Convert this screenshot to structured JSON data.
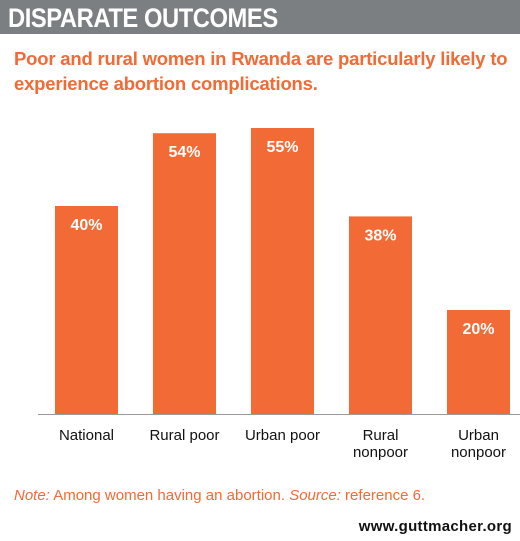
{
  "header": {
    "title": "DISPARATE OUTCOMES",
    "subtitle": "Poor and rural women in Rwanda are particularly likely to experience abortion complications."
  },
  "footer": {
    "note_label": "Note:",
    "note_text": " Among women having an abortion. ",
    "source_label": "Source:",
    "source_text": " reference 6.",
    "url": "www.guttmacher.org"
  },
  "colors": {
    "bar": "#f26a35",
    "title_bar": "#7b7f82",
    "accent_text": "#f26a35"
  },
  "chart_data": {
    "type": "bar",
    "categories": [
      "National",
      "Rural poor",
      "Urban poor",
      "Rural nonpoor",
      "Urban nonpoor"
    ],
    "values": [
      40,
      54,
      55,
      38,
      20
    ],
    "data_labels": [
      "40%",
      "54%",
      "55%",
      "38%",
      "20%"
    ],
    "ylim": [
      0,
      55
    ],
    "grid": false,
    "legend": "none"
  }
}
